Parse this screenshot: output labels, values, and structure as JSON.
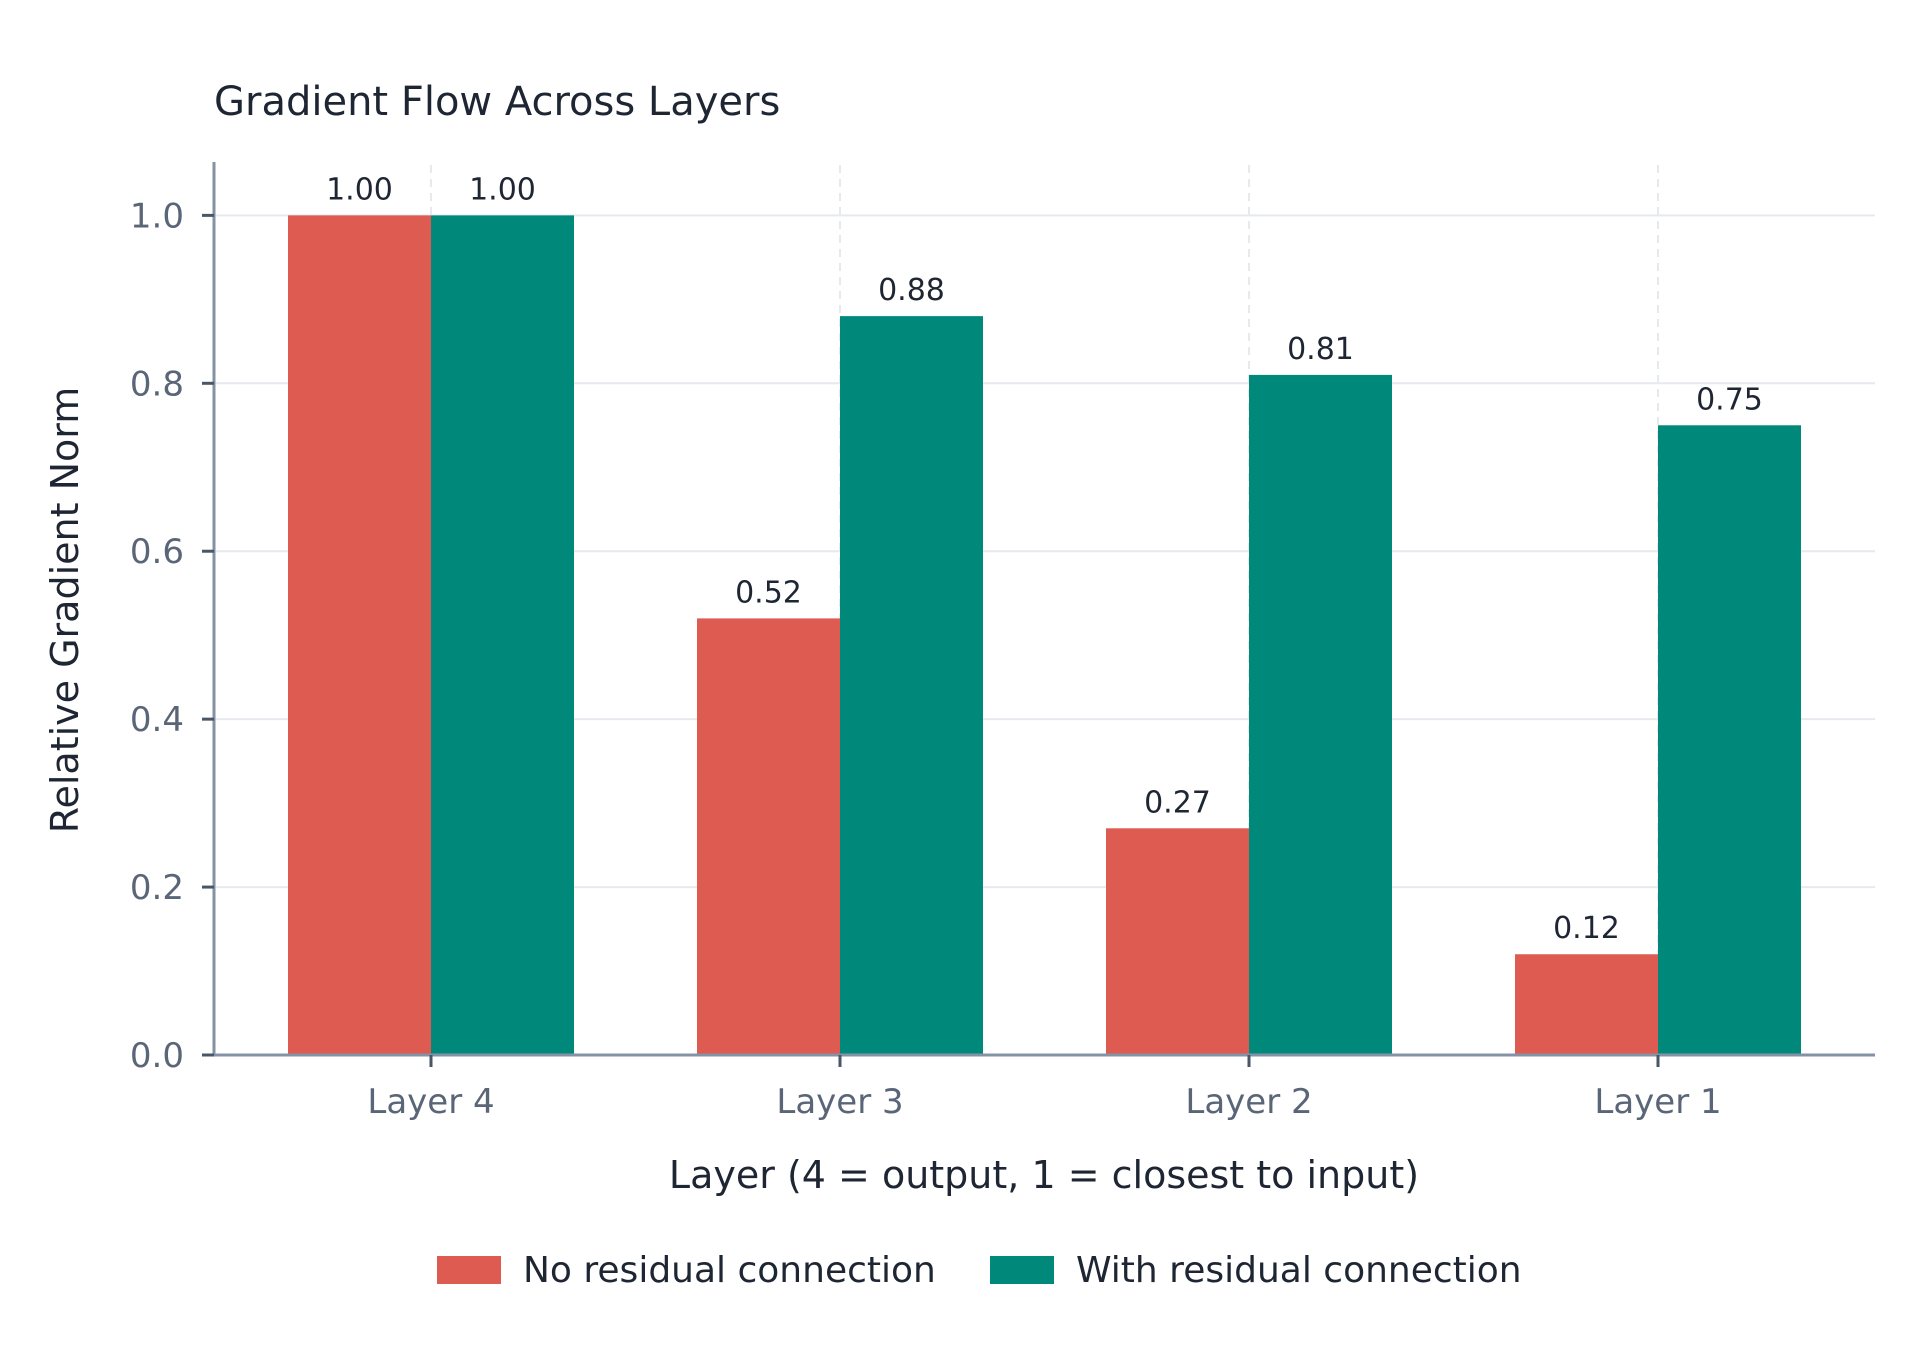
{
  "chart_data": {
    "type": "bar",
    "title": "Gradient Flow Across Layers",
    "xlabel": "Layer (4 = output, 1 = closest to input)",
    "ylabel": "Relative Gradient Norm",
    "categories": [
      "Layer 4",
      "Layer 3",
      "Layer 2",
      "Layer 1"
    ],
    "series": [
      {
        "name": "No residual connection",
        "color": "#dd5b51",
        "values": [
          1.0,
          0.52,
          0.27,
          0.12
        ],
        "labels": [
          "1.00",
          "0.52",
          "0.27",
          "0.12"
        ]
      },
      {
        "name": "With residual connection",
        "color": "#00897b",
        "values": [
          1.0,
          0.88,
          0.81,
          0.75
        ],
        "labels": [
          "1.00",
          "0.88",
          "0.81",
          "0.75"
        ]
      }
    ],
    "ylim": [
      0,
      1.0
    ],
    "yticks": [
      0.0,
      0.2,
      0.4,
      0.6,
      0.8,
      1.0
    ],
    "ytick_labels": [
      "0.0",
      "0.2",
      "0.4",
      "0.6",
      "0.8",
      "1.0"
    ],
    "grid": true,
    "legend": "bottom-center"
  }
}
